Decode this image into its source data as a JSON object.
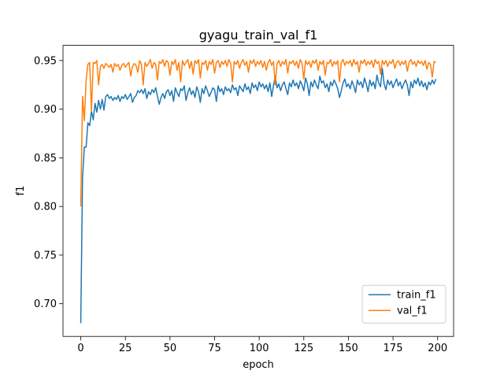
{
  "chart_data": {
    "type": "line",
    "title": "gyagu_train_val_f1",
    "x_label": "epoch",
    "y_label": "f1",
    "x": [
      0,
      1,
      2,
      3,
      4,
      5,
      6,
      7,
      8,
      9,
      10,
      11,
      12,
      13,
      14,
      15,
      16,
      17,
      18,
      19,
      20,
      21,
      22,
      23,
      24,
      25,
      26,
      27,
      28,
      29,
      30,
      31,
      32,
      33,
      34,
      35,
      36,
      37,
      38,
      39,
      40,
      41,
      42,
      43,
      44,
      45,
      46,
      47,
      48,
      49,
      50,
      51,
      52,
      53,
      54,
      55,
      56,
      57,
      58,
      59,
      60,
      61,
      62,
      63,
      64,
      65,
      66,
      67,
      68,
      69,
      70,
      71,
      72,
      73,
      74,
      75,
      76,
      77,
      78,
      79,
      80,
      81,
      82,
      83,
      84,
      85,
      86,
      87,
      88,
      89,
      90,
      91,
      92,
      93,
      94,
      95,
      96,
      97,
      98,
      99,
      100,
      101,
      102,
      103,
      104,
      105,
      106,
      107,
      108,
      109,
      110,
      111,
      112,
      113,
      114,
      115,
      116,
      117,
      118,
      119,
      120,
      121,
      122,
      123,
      124,
      125,
      126,
      127,
      128,
      129,
      130,
      131,
      132,
      133,
      134,
      135,
      136,
      137,
      138,
      139,
      140,
      141,
      142,
      143,
      144,
      145,
      146,
      147,
      148,
      149,
      150,
      151,
      152,
      153,
      154,
      155,
      156,
      157,
      158,
      159,
      160,
      161,
      162,
      163,
      164,
      165,
      166,
      167,
      168,
      169,
      170,
      171,
      172,
      173,
      174,
      175,
      176,
      177,
      178,
      179,
      180,
      181,
      182,
      183,
      184,
      185,
      186,
      187,
      188,
      189,
      190,
      191,
      192,
      193,
      194,
      195,
      196,
      197,
      198,
      199
    ],
    "series": [
      {
        "name": "train_f1",
        "color": "#1f77b4",
        "values": [
          0.68,
          0.83,
          0.861,
          0.861,
          0.886,
          0.883,
          0.898,
          0.889,
          0.906,
          0.897,
          0.909,
          0.9,
          0.91,
          0.899,
          0.913,
          0.915,
          0.911,
          0.913,
          0.909,
          0.912,
          0.91,
          0.914,
          0.908,
          0.913,
          0.911,
          0.915,
          0.91,
          0.913,
          0.916,
          0.907,
          0.912,
          0.914,
          0.919,
          0.917,
          0.92,
          0.916,
          0.921,
          0.911,
          0.918,
          0.915,
          0.92,
          0.917,
          0.922,
          0.913,
          0.905,
          0.912,
          0.916,
          0.911,
          0.918,
          0.92,
          0.914,
          0.919,
          0.908,
          0.922,
          0.917,
          0.913,
          0.921,
          0.919,
          0.924,
          0.909,
          0.917,
          0.922,
          0.915,
          0.919,
          0.912,
          0.923,
          0.918,
          0.907,
          0.921,
          0.916,
          0.924,
          0.919,
          0.913,
          0.917,
          0.922,
          0.92,
          0.908,
          0.924,
          0.918,
          0.921,
          0.915,
          0.923,
          0.919,
          0.921,
          0.917,
          0.925,
          0.92,
          0.922,
          0.914,
          0.924,
          0.921,
          0.918,
          0.926,
          0.92,
          0.923,
          0.916,
          0.927,
          0.922,
          0.925,
          0.919,
          0.928,
          0.923,
          0.926,
          0.921,
          0.925,
          0.918,
          0.927,
          0.913,
          0.924,
          0.934,
          0.922,
          0.926,
          0.919,
          0.925,
          0.928,
          0.921,
          0.915,
          0.927,
          0.923,
          0.93,
          0.924,
          0.927,
          0.921,
          0.929,
          0.925,
          0.919,
          0.932,
          0.926,
          0.914,
          0.928,
          0.923,
          0.93,
          0.925,
          0.921,
          0.934,
          0.927,
          0.929,
          0.922,
          0.926,
          0.918,
          0.928,
          0.924,
          0.93,
          0.926,
          0.921,
          0.912,
          0.919,
          0.927,
          0.931,
          0.923,
          0.926,
          0.921,
          0.929,
          0.924,
          0.917,
          0.93,
          0.925,
          0.928,
          0.922,
          0.932,
          0.926,
          0.918,
          0.93,
          0.924,
          0.928,
          0.921,
          0.935,
          0.927,
          0.923,
          0.942,
          0.926,
          0.92,
          0.93,
          0.925,
          0.929,
          0.922,
          0.927,
          0.931,
          0.924,
          0.928,
          0.921,
          0.926,
          0.93,
          0.925,
          0.914,
          0.928,
          0.922,
          0.93,
          0.926,
          0.932,
          0.924,
          0.929,
          0.923,
          0.927,
          0.92,
          0.928,
          0.925,
          0.93,
          0.926,
          0.931
        ]
      },
      {
        "name": "val_f1",
        "color": "#ff7f0e",
        "values": [
          0.8,
          0.913,
          0.888,
          0.93,
          0.946,
          0.948,
          0.898,
          0.948,
          0.947,
          0.95,
          0.925,
          0.944,
          0.946,
          0.942,
          0.947,
          0.945,
          0.943,
          0.946,
          0.938,
          0.947,
          0.944,
          0.946,
          0.94,
          0.945,
          0.947,
          0.943,
          0.946,
          0.948,
          0.934,
          0.944,
          0.947,
          0.945,
          0.938,
          0.95,
          0.946,
          0.925,
          0.948,
          0.944,
          0.947,
          0.951,
          0.942,
          0.948,
          0.946,
          0.93,
          0.949,
          0.947,
          0.951,
          0.944,
          0.95,
          0.948,
          0.935,
          0.949,
          0.946,
          0.951,
          0.94,
          0.948,
          0.928,
          0.95,
          0.945,
          0.948,
          0.951,
          0.942,
          0.949,
          0.936,
          0.95,
          0.947,
          0.951,
          0.932,
          0.948,
          0.946,
          0.95,
          0.94,
          0.949,
          0.946,
          0.951,
          0.937,
          0.948,
          0.95,
          0.943,
          0.949,
          0.946,
          0.95,
          0.944,
          0.951,
          0.947,
          0.928,
          0.949,
          0.946,
          0.95,
          0.942,
          0.948,
          0.951,
          0.945,
          0.949,
          0.938,
          0.95,
          0.947,
          0.951,
          0.944,
          0.949,
          0.946,
          0.95,
          0.943,
          0.949,
          0.94,
          0.948,
          0.951,
          0.945,
          0.949,
          0.925,
          0.947,
          0.95,
          0.944,
          0.949,
          0.946,
          0.951,
          0.937,
          0.949,
          0.947,
          0.95,
          0.945,
          0.949,
          0.942,
          0.951,
          0.947,
          0.931,
          0.95,
          0.946,
          0.949,
          0.943,
          0.95,
          0.947,
          0.951,
          0.94,
          0.949,
          0.946,
          0.95,
          0.935,
          0.948,
          0.947,
          0.951,
          0.944,
          0.949,
          0.946,
          0.95,
          0.928,
          0.948,
          0.951,
          0.945,
          0.949,
          0.947,
          0.95,
          0.944,
          0.951,
          0.946,
          0.949,
          0.938,
          0.95,
          0.947,
          0.951,
          0.945,
          0.949,
          0.946,
          0.95,
          0.943,
          0.951,
          0.947,
          0.949,
          0.936,
          0.95,
          0.946,
          0.95,
          0.944,
          0.949,
          0.947,
          0.951,
          0.942,
          0.948,
          0.95,
          0.945,
          0.949,
          0.946,
          0.95,
          0.939,
          0.948,
          0.951,
          0.946,
          0.949,
          0.944,
          0.95,
          0.947,
          0.949,
          0.945,
          0.95,
          0.941,
          0.948,
          0.946,
          0.933,
          0.949,
          0.948
        ]
      }
    ],
    "xlim": [
      -9.95,
      208.95
    ],
    "ylim": [
      0.6664,
      0.9656
    ],
    "xticks": [
      0,
      25,
      50,
      75,
      100,
      125,
      150,
      175,
      200
    ],
    "yticks": [
      {
        "value": 0.7,
        "label": "0.70"
      },
      0.75,
      {
        "value": 0.8,
        "label": "0.80"
      },
      0.85,
      {
        "value": 0.9,
        "label": "0.90"
      },
      0.95
    ],
    "legend": "lower right"
  }
}
